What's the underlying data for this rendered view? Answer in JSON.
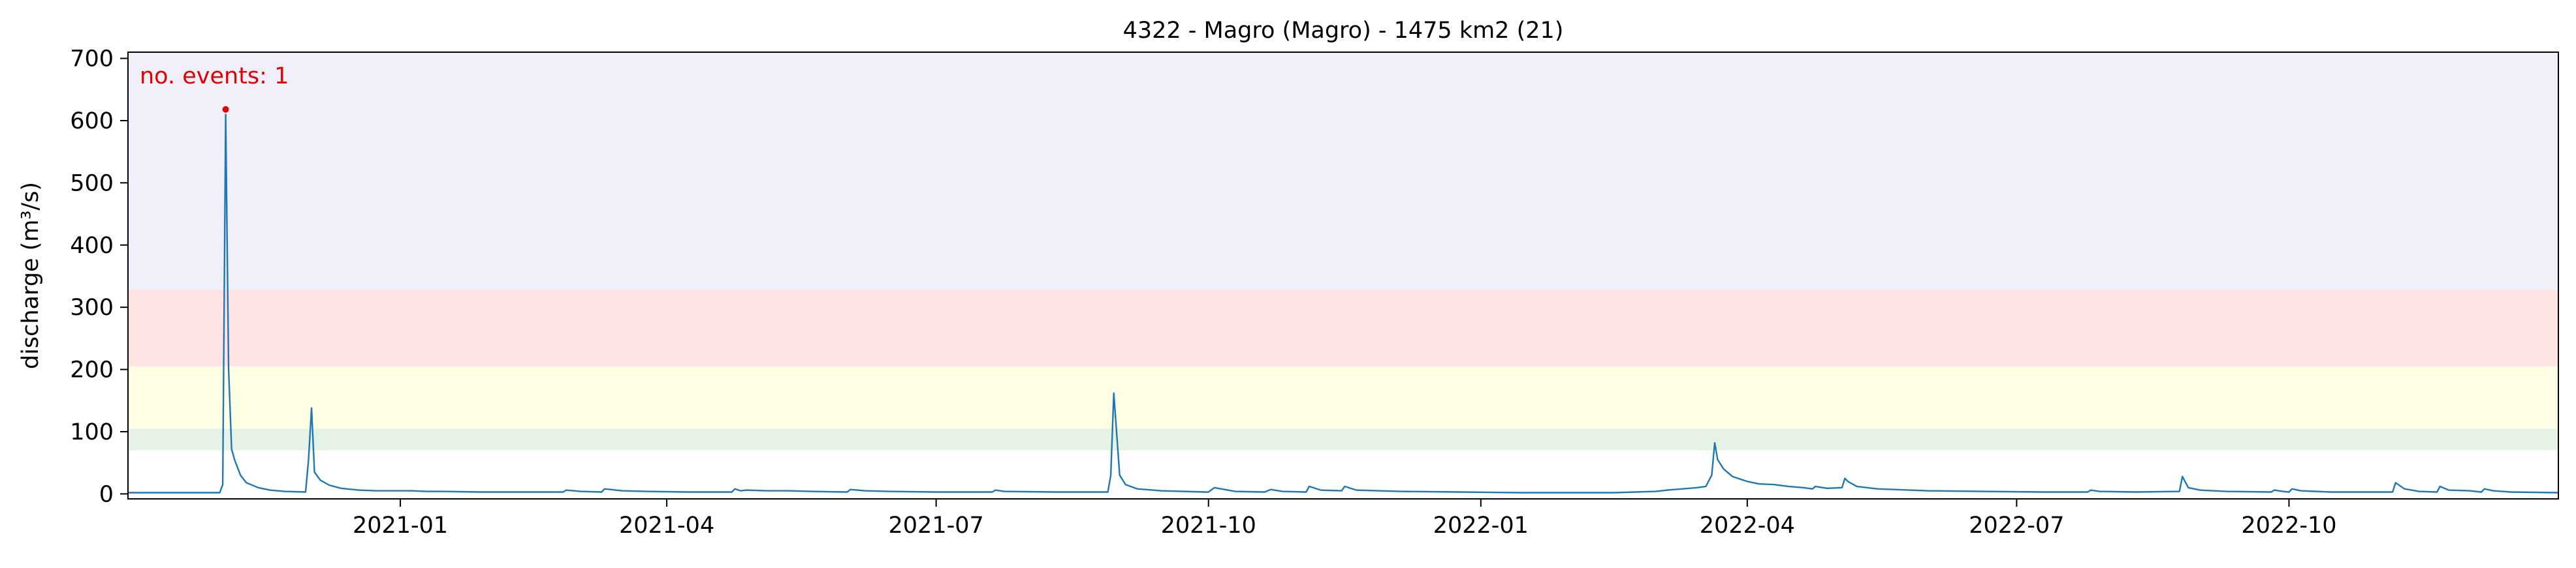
{
  "chart_data": {
    "type": "line",
    "title": "4322 - Magro (Magro) - 1475 km2 (21)",
    "xlabel": "",
    "ylabel": "discharge (m³/s)",
    "x_range": [
      "2020-10-01",
      "2022-12-31"
    ],
    "ylim": [
      -8,
      710
    ],
    "y_ticks": [
      0,
      100,
      200,
      300,
      400,
      500,
      600,
      700
    ],
    "x_ticks": [
      "2021-01-01",
      "2021-04-01",
      "2021-07-01",
      "2021-10-01",
      "2022-01-01",
      "2022-04-01",
      "2022-07-01",
      "2022-10-01"
    ],
    "x_tick_labels": [
      "2021-01",
      "2021-04",
      "2021-07",
      "2021-10",
      "2022-01",
      "2022-04",
      "2022-07",
      "2022-10"
    ],
    "grid": false,
    "legend": "none",
    "bands": [
      {
        "from": 70,
        "to": 105,
        "color": "#e5f2e5"
      },
      {
        "from": 105,
        "to": 205,
        "color": "#fefee5"
      },
      {
        "from": 205,
        "to": 328,
        "color": "#fee3e3"
      },
      {
        "from": 328,
        "to": 710,
        "color": "#f1effa"
      }
    ],
    "series": [
      {
        "color": "#1f77b4",
        "x": [
          "2020-10-01",
          "2020-10-20",
          "2020-11-01",
          "2020-11-02",
          "2020-11-03",
          "2020-11-04",
          "2020-11-05",
          "2020-11-06",
          "2020-11-08",
          "2020-11-10",
          "2020-11-14",
          "2020-11-18",
          "2020-11-23",
          "2020-11-30",
          "2020-12-01",
          "2020-12-02",
          "2020-12-03",
          "2020-12-05",
          "2020-12-08",
          "2020-12-12",
          "2020-12-18",
          "2020-12-24",
          "2020-12-26",
          "2020-12-28",
          "2021-01-05",
          "2021-01-10",
          "2021-01-15",
          "2021-01-28",
          "2021-02-10",
          "2021-02-25",
          "2021-02-26",
          "2021-03-03",
          "2021-03-10",
          "2021-03-11",
          "2021-03-17",
          "2021-03-25",
          "2021-04-08",
          "2021-04-23",
          "2021-04-24",
          "2021-04-26",
          "2021-04-28",
          "2021-05-05",
          "2021-05-12",
          "2021-05-20",
          "2021-06-01",
          "2021-06-02",
          "2021-06-07",
          "2021-06-15",
          "2021-07-01",
          "2021-07-20",
          "2021-07-21",
          "2021-07-24",
          "2021-08-10",
          "2021-08-28",
          "2021-08-29",
          "2021-08-30",
          "2021-09-01",
          "2021-09-03",
          "2021-09-07",
          "2021-09-15",
          "2021-09-30",
          "2021-10-01",
          "2021-10-03",
          "2021-10-10",
          "2021-10-20",
          "2021-10-22",
          "2021-10-26",
          "2021-11-03",
          "2021-11-04",
          "2021-11-08",
          "2021-11-15",
          "2021-11-16",
          "2021-11-20",
          "2021-12-05",
          "2021-12-25",
          "2022-01-15",
          "2022-02-05",
          "2022-02-15",
          "2022-03-01",
          "2022-03-05",
          "2022-03-10",
          "2022-03-15",
          "2022-03-18",
          "2022-03-20",
          "2022-03-21",
          "2022-03-22",
          "2022-03-24",
          "2022-03-27",
          "2022-04-01",
          "2022-04-05",
          "2022-04-10",
          "2022-04-15",
          "2022-04-20",
          "2022-04-23",
          "2022-04-24",
          "2022-04-28",
          "2022-05-03",
          "2022-05-04",
          "2022-05-05",
          "2022-05-08",
          "2022-05-15",
          "2022-06-01",
          "2022-06-20",
          "2022-07-10",
          "2022-07-25",
          "2022-07-26",
          "2022-07-29",
          "2022-08-10",
          "2022-08-25",
          "2022-08-26",
          "2022-08-28",
          "2022-09-01",
          "2022-09-10",
          "2022-09-25",
          "2022-09-26",
          "2022-09-29",
          "2022-10-01",
          "2022-10-02",
          "2022-10-05",
          "2022-10-15",
          "2022-10-25",
          "2022-11-05",
          "2022-11-06",
          "2022-11-09",
          "2022-11-14",
          "2022-11-20",
          "2022-11-21",
          "2022-11-24",
          "2022-12-01",
          "2022-12-05",
          "2022-12-06",
          "2022-12-09",
          "2022-12-15",
          "2022-12-31"
        ],
        "y": [
          2,
          2,
          2,
          15,
          610,
          200,
          72,
          55,
          30,
          18,
          10,
          6,
          4,
          3,
          55,
          138,
          35,
          22,
          14,
          9,
          6,
          5,
          5,
          5,
          5,
          4,
          4,
          3,
          3,
          3,
          6,
          4,
          3,
          8,
          5,
          4,
          3,
          3,
          8,
          5,
          6,
          5,
          5,
          4,
          3,
          7,
          5,
          4,
          3,
          3,
          6,
          4,
          3,
          3,
          30,
          162,
          30,
          15,
          8,
          5,
          3,
          3,
          10,
          4,
          3,
          7,
          4,
          3,
          12,
          6,
          5,
          12,
          6,
          4,
          3,
          2,
          2,
          2,
          4,
          6,
          8,
          10,
          12,
          30,
          82,
          55,
          40,
          28,
          20,
          16,
          15,
          12,
          10,
          8,
          12,
          9,
          10,
          25,
          20,
          12,
          8,
          5,
          4,
          3,
          3,
          6,
          4,
          3,
          4,
          28,
          10,
          6,
          4,
          3,
          6,
          4,
          3,
          8,
          5,
          3,
          3,
          3,
          18,
          8,
          4,
          3,
          12,
          6,
          5,
          3,
          8,
          5,
          3,
          2
        ]
      }
    ],
    "annotations": [
      {
        "text": "no. events: 1",
        "color": "#e00000"
      }
    ],
    "event_markers": [
      {
        "x": "2020-11-03",
        "y": 618,
        "color": "#e00000"
      }
    ]
  }
}
